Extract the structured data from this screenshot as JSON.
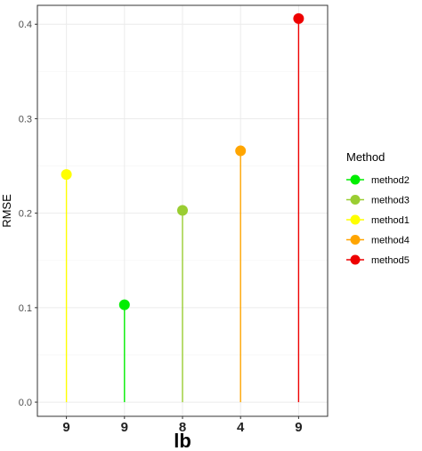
{
  "chart_data": {
    "type": "lollipop",
    "xlabel": "lb",
    "ylabel": "RMSE",
    "ylim": [
      -0.015,
      0.42
    ],
    "yticks": [
      0.0,
      0.1,
      0.2,
      0.3,
      0.4
    ],
    "ytick_labels": [
      "0.0",
      "0.1",
      "0.2",
      "0.3",
      "0.4"
    ],
    "grid": true,
    "legend": {
      "title": "Method",
      "placement": "right",
      "entries": [
        {
          "name": "method2",
          "color": "#00ee00"
        },
        {
          "name": "method3",
          "color": "#9acd32"
        },
        {
          "name": "method1",
          "color": "#ffff00"
        },
        {
          "name": "method4",
          "color": "#ffa500"
        },
        {
          "name": "method5",
          "color": "#ee0000"
        }
      ]
    },
    "points": [
      {
        "x_label": "9",
        "method": "method1",
        "value": 0.241,
        "color": "#ffff00"
      },
      {
        "x_label": "9",
        "method": "method2",
        "value": 0.103,
        "color": "#00ee00"
      },
      {
        "x_label": "8",
        "method": "method3",
        "value": 0.203,
        "color": "#9acd32"
      },
      {
        "x_label": "4",
        "method": "method4",
        "value": 0.266,
        "color": "#ffa500"
      },
      {
        "x_label": "9",
        "method": "method5",
        "value": 0.406,
        "color": "#ee0000"
      }
    ]
  }
}
